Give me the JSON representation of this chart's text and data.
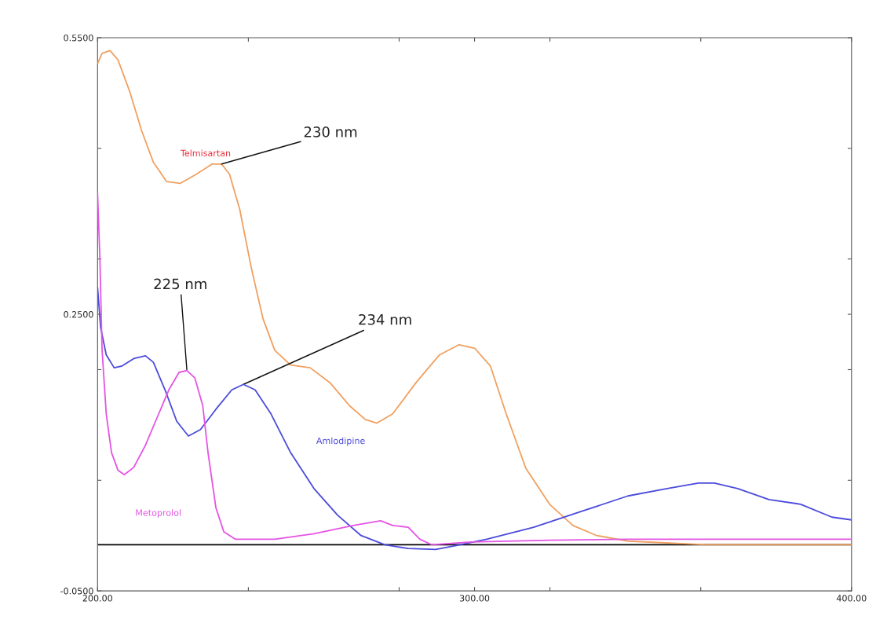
{
  "chart_data": {
    "type": "line",
    "xlim": [
      200,
      400
    ],
    "xticks": [
      {
        "value": 200,
        "label": "200.00"
      },
      {
        "value": 240,
        "label": null
      },
      {
        "value": 280,
        "label": null
      },
      {
        "value": 300,
        "label": "300.00"
      },
      {
        "value": 320,
        "label": null
      },
      {
        "value": 360,
        "label": null
      },
      {
        "value": 400,
        "label": "400.00"
      }
    ],
    "ylim": [
      -0.05,
      0.55
    ],
    "yticks": [
      {
        "value": -0.05,
        "label": "-0.0500"
      },
      {
        "value": 0.07,
        "label": null
      },
      {
        "value": 0.19,
        "label": null
      },
      {
        "value": 0.25,
        "label": "0.2500"
      },
      {
        "value": 0.31,
        "label": null
      },
      {
        "value": 0.43,
        "label": null
      },
      {
        "value": 0.55,
        "label": "0.5500"
      }
    ],
    "grid": false,
    "legend": false,
    "series": [
      {
        "name": "Telmisartan",
        "color": "#f0a060",
        "x": [
          200,
          201.2,
          203.3,
          205.4,
          208.5,
          211.7,
          214.8,
          218.3,
          221.9,
          226.2,
          230.4,
          232.9,
          235,
          237.7,
          240.8,
          243.9,
          247,
          251.2,
          256.4,
          261.6,
          266.8,
          271,
          274.1,
          278.3,
          284.5,
          290.7,
          295.9,
          300.1,
          304.2,
          308.4,
          313.6,
          319.9,
          326.1,
          332.4,
          340.7,
          361.5,
          400
        ],
        "values": [
          0.522,
          0.533,
          0.536,
          0.526,
          0.492,
          0.449,
          0.415,
          0.394,
          0.392,
          0.402,
          0.413,
          0.413,
          0.402,
          0.364,
          0.3,
          0.245,
          0.211,
          0.195,
          0.192,
          0.176,
          0.151,
          0.136,
          0.132,
          0.142,
          0.176,
          0.206,
          0.217,
          0.213,
          0.194,
          0.142,
          0.083,
          0.044,
          0.021,
          0.01,
          0.004,
          0,
          0
        ]
      },
      {
        "name": "Amlodipine",
        "color": "#4b4bdc",
        "x": [
          200,
          200.8,
          202.3,
          204.4,
          206.5,
          209.6,
          212.7,
          214.8,
          217.9,
          221,
          224.1,
          227.3,
          231.4,
          235.6,
          238.7,
          241.8,
          246,
          251.2,
          257.4,
          263.7,
          269.9,
          276.2,
          282.4,
          289.7,
          294.9,
          303.2,
          315.7,
          328.2,
          340.7,
          351.1,
          359.4,
          363.6,
          369.8,
          378.1,
          386.5,
          394.8,
          400
        ],
        "values": [
          0.279,
          0.236,
          0.206,
          0.192,
          0.194,
          0.202,
          0.205,
          0.198,
          0.168,
          0.134,
          0.118,
          0.125,
          0.147,
          0.168,
          0.174,
          0.168,
          0.142,
          0.1,
          0.061,
          0.032,
          0.01,
          0,
          -0.004,
          -0.005,
          -0.001,
          0.006,
          0.019,
          0.036,
          0.053,
          0.061,
          0.067,
          0.067,
          0.061,
          0.049,
          0.044,
          0.03,
          0.027
        ]
      },
      {
        "name": "Metoprolol",
        "color": "#e454e4",
        "x": [
          200,
          200.6,
          201.2,
          202.3,
          203.7,
          205.4,
          207.1,
          209.6,
          212.7,
          215.8,
          218.9,
          221.6,
          223.7,
          225.8,
          227.9,
          229.3,
          231.4,
          233.5,
          236.6,
          247,
          257.4,
          267.8,
          275.1,
          278.3,
          282.4,
          285.5,
          288.7,
          299.1,
          319.9,
          340.7,
          361.5,
          400
        ],
        "values": [
          0.381,
          0.313,
          0.211,
          0.142,
          0.1,
          0.081,
          0.076,
          0.084,
          0.108,
          0.138,
          0.168,
          0.187,
          0.189,
          0.181,
          0.151,
          0.1,
          0.04,
          0.014,
          0.006,
          0.006,
          0.012,
          0.021,
          0.026,
          0.021,
          0.019,
          0.006,
          0,
          0.003,
          0.005,
          0.006,
          0.006,
          0.006
        ]
      }
    ],
    "ref_lines": [
      {
        "axis": "y",
        "value": 0,
        "color": "#000000"
      }
    ],
    "annotations": [
      {
        "text": "230 nm",
        "x": 232.9,
        "y": 0.413
      },
      {
        "text": "225 nm",
        "x": 223.7,
        "y": 0.189
      },
      {
        "text": "234 nm",
        "x": 238.7,
        "y": 0.174
      }
    ]
  }
}
